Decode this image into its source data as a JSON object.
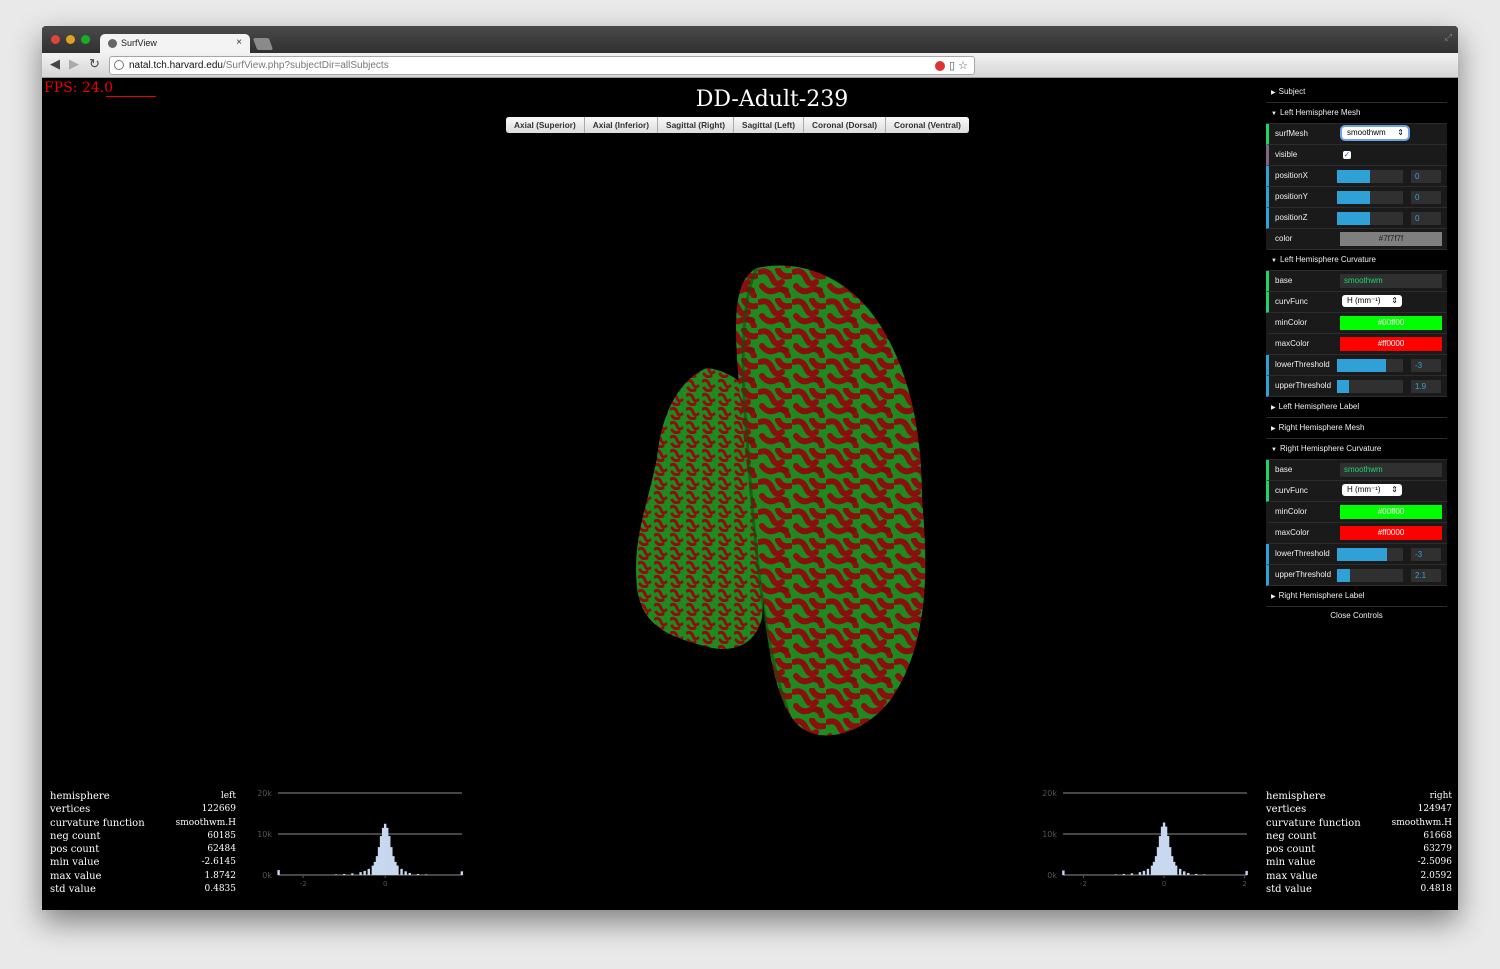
{
  "browser": {
    "tab_title": "SurfView",
    "tab_close": "×",
    "url_host": "natal.tch.harvard.edu",
    "url_path": "/SurfView.php?subjectDir=allSubjects"
  },
  "page": {
    "fps_label": "FPS:  24.0",
    "title": "DD-Adult-239",
    "views": [
      "Axial (Superior)",
      "Axial (Inferior)",
      "Sagittal (Right)",
      "Sagittal (Left)",
      "Coronal (Dorsal)",
      "Coronal (Ventral)"
    ]
  },
  "colors": {
    "green": "#00ff00",
    "red": "#ff0000",
    "gray": "#7f7f7f",
    "slider": "#2fa1d6"
  },
  "gui": {
    "subject": "Subject",
    "lh_mesh": {
      "title": "Left Hemisphere Mesh",
      "surfMesh_label": "surfMesh",
      "surfMesh_value": "smoothwm",
      "visible_label": "visible",
      "visible_check": "✓",
      "posx_label": "positionX",
      "posx_value": "0",
      "posx_frac": 0.5,
      "posy_label": "positionY",
      "posy_value": "0",
      "posy_frac": 0.5,
      "posz_label": "positionZ",
      "posz_value": "0",
      "posz_frac": 0.5,
      "color_label": "color",
      "color_value": "#7f7f7f"
    },
    "lh_curv": {
      "title": "Left Hemisphere Curvature",
      "base_label": "base",
      "base_value": "smoothwm",
      "curvFunc_label": "curvFunc",
      "curvFunc_value": "H (mm⁻¹)",
      "minColor_label": "minColor",
      "minColor_value": "#00ff00",
      "maxColor_label": "maxColor",
      "maxColor_value": "#ff0000",
      "lower_label": "lowerThreshold",
      "lower_value": "-3",
      "lower_frac": 0.74,
      "upper_label": "upperThreshold",
      "upper_value": "1.9",
      "upper_frac": 0.18
    },
    "lh_label": "Left Hemisphere Label",
    "rh_mesh": "Right Hemisphere Mesh",
    "rh_curv": {
      "title": "Right Hemisphere Curvature",
      "base_label": "base",
      "base_value": "smoothwm",
      "curvFunc_label": "curvFunc",
      "curvFunc_value": "H (mm⁻¹)",
      "minColor_label": "minColor",
      "minColor_value": "#00ff00",
      "maxColor_label": "maxColor",
      "maxColor_value": "#ff0000",
      "lower_label": "lowerThreshold",
      "lower_value": "-3",
      "lower_frac": 0.75,
      "upper_label": "upperThreshold",
      "upper_value": "2.1",
      "upper_frac": 0.2
    },
    "rh_label": "Right Hemisphere Label",
    "close": "Close Controls"
  },
  "left_stats": {
    "rows": [
      {
        "k": "hemisphere",
        "v": "left"
      },
      {
        "k": "vertices",
        "v": "122669"
      },
      {
        "k": "curvature function",
        "v": "smoothwm.H"
      },
      {
        "k": "neg count",
        "v": "60185"
      },
      {
        "k": "pos count",
        "v": "62484"
      },
      {
        "k": "min value",
        "v": "-2.6145"
      },
      {
        "k": "max value",
        "v": "1.8742"
      },
      {
        "k": "std value",
        "v": "0.4835"
      }
    ]
  },
  "right_stats": {
    "rows": [
      {
        "k": "hemisphere",
        "v": "right"
      },
      {
        "k": "vertices",
        "v": "124947"
      },
      {
        "k": "curvature function",
        "v": "smoothwm.H"
      },
      {
        "k": "neg count",
        "v": "61668"
      },
      {
        "k": "pos count",
        "v": "63279"
      },
      {
        "k": "min value",
        "v": "-2.5096"
      },
      {
        "k": "max value",
        "v": "2.0592"
      },
      {
        "k": "std value",
        "v": "0.4818"
      }
    ]
  },
  "chart_data": [
    {
      "type": "bar",
      "title": "",
      "yticks": [
        "0k",
        "10k",
        "20k"
      ],
      "xticks": [
        "-2",
        "0"
      ],
      "ylim": [
        0,
        20000
      ],
      "xlim": [
        -2.6145,
        1.8742
      ],
      "x": [
        -2.6,
        -1.2,
        -1.0,
        -0.8,
        -0.6,
        -0.5,
        -0.4,
        -0.3,
        -0.25,
        -0.2,
        -0.15,
        -0.1,
        -0.05,
        0.0,
        0.05,
        0.1,
        0.15,
        0.2,
        0.25,
        0.3,
        0.4,
        0.5,
        0.6,
        0.8,
        1.0,
        1.87
      ],
      "values": [
        1200,
        150,
        250,
        400,
        700,
        1000,
        1500,
        2300,
        3200,
        4600,
        6800,
        9500,
        11500,
        12500,
        11500,
        9500,
        6800,
        4600,
        3200,
        2300,
        1500,
        900,
        500,
        250,
        150,
        900
      ]
    },
    {
      "type": "bar",
      "title": "",
      "yticks": [
        "0k",
        "10k",
        "20k"
      ],
      "xticks": [
        "-2",
        "0",
        "2"
      ],
      "ylim": [
        0,
        20000
      ],
      "xlim": [
        -2.5096,
        2.0592
      ],
      "x": [
        -2.5,
        -1.2,
        -1.0,
        -0.8,
        -0.6,
        -0.5,
        -0.4,
        -0.3,
        -0.25,
        -0.2,
        -0.15,
        -0.1,
        -0.05,
        0.0,
        0.05,
        0.1,
        0.15,
        0.2,
        0.25,
        0.3,
        0.4,
        0.5,
        0.6,
        0.8,
        1.0,
        2.05
      ],
      "values": [
        1100,
        150,
        250,
        400,
        700,
        1000,
        1500,
        2300,
        3200,
        4600,
        6800,
        9500,
        11800,
        12800,
        11800,
        9500,
        6800,
        4600,
        3200,
        2300,
        1500,
        900,
        500,
        250,
        150,
        1000
      ]
    }
  ]
}
